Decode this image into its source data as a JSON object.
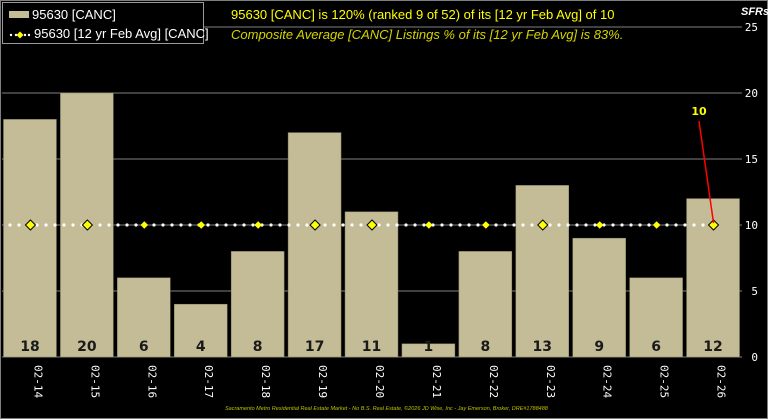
{
  "legend": {
    "bar_series_label": "95630 [CANC]",
    "avg_series_label": "95630 [12 yr Feb Avg] [CANC]"
  },
  "header": {
    "title": "95630 [CANC] is 120% (ranked 9 of 52) of its [12 yr Feb Avg] of 10",
    "subtitle": "Composite Average [CANC] Listings % of its [12 yr Feb Avg] is 83%.",
    "units_label": "SFRs"
  },
  "footer": {
    "credit": "Sacramento Metro Residential Real Estate Market - No B.S. Real Estate, ©2026 JD Wise, Inc - Jay Emerson, Broker, DRE#1788488"
  },
  "colors": {
    "background": "#000000",
    "bar": "#c4bc96",
    "avg_marker": "#ffff00",
    "avg_line": "#ffffff",
    "callout_line": "#ff0000",
    "callout_text": "#ffff00",
    "title": "#ffff00",
    "grid": "#7f7f7f"
  },
  "chart_data": {
    "type": "bar",
    "title": "95630 [CANC] is 120% (ranked 9 of 52) of its [12 yr Feb Avg] of 10",
    "subtitle": "Composite Average [CANC] Listings % of its [12 yr Feb Avg] is 83%.",
    "xlabel": "",
    "ylabel": "SFRs",
    "ylim": [
      0,
      25
    ],
    "yticks": [
      0,
      5,
      10,
      15,
      20,
      25
    ],
    "y_axis_position": "right",
    "grid": true,
    "legend_position": "top-left",
    "categories": [
      "02-14",
      "02-15",
      "02-16",
      "02-17",
      "02-18",
      "02-19",
      "02-20",
      "02-21",
      "02-22",
      "02-23",
      "02-24",
      "02-25",
      "02-26"
    ],
    "series": [
      {
        "name": "95630 [CANC]",
        "type": "bar",
        "values": [
          18,
          20,
          6,
          4,
          8,
          17,
          11,
          1,
          8,
          13,
          9,
          6,
          12
        ]
      },
      {
        "name": "95630 [12 yr Feb Avg] [CANC]",
        "type": "line",
        "style": "dotted-with-diamond-markers",
        "values": [
          10,
          10,
          10,
          10,
          10,
          10,
          10,
          10,
          10,
          10,
          10,
          10,
          10
        ]
      }
    ],
    "annotations": [
      {
        "text": "10",
        "target_category": "02-26",
        "target_value": 10,
        "note": "red callout line to last average marker"
      }
    ]
  }
}
